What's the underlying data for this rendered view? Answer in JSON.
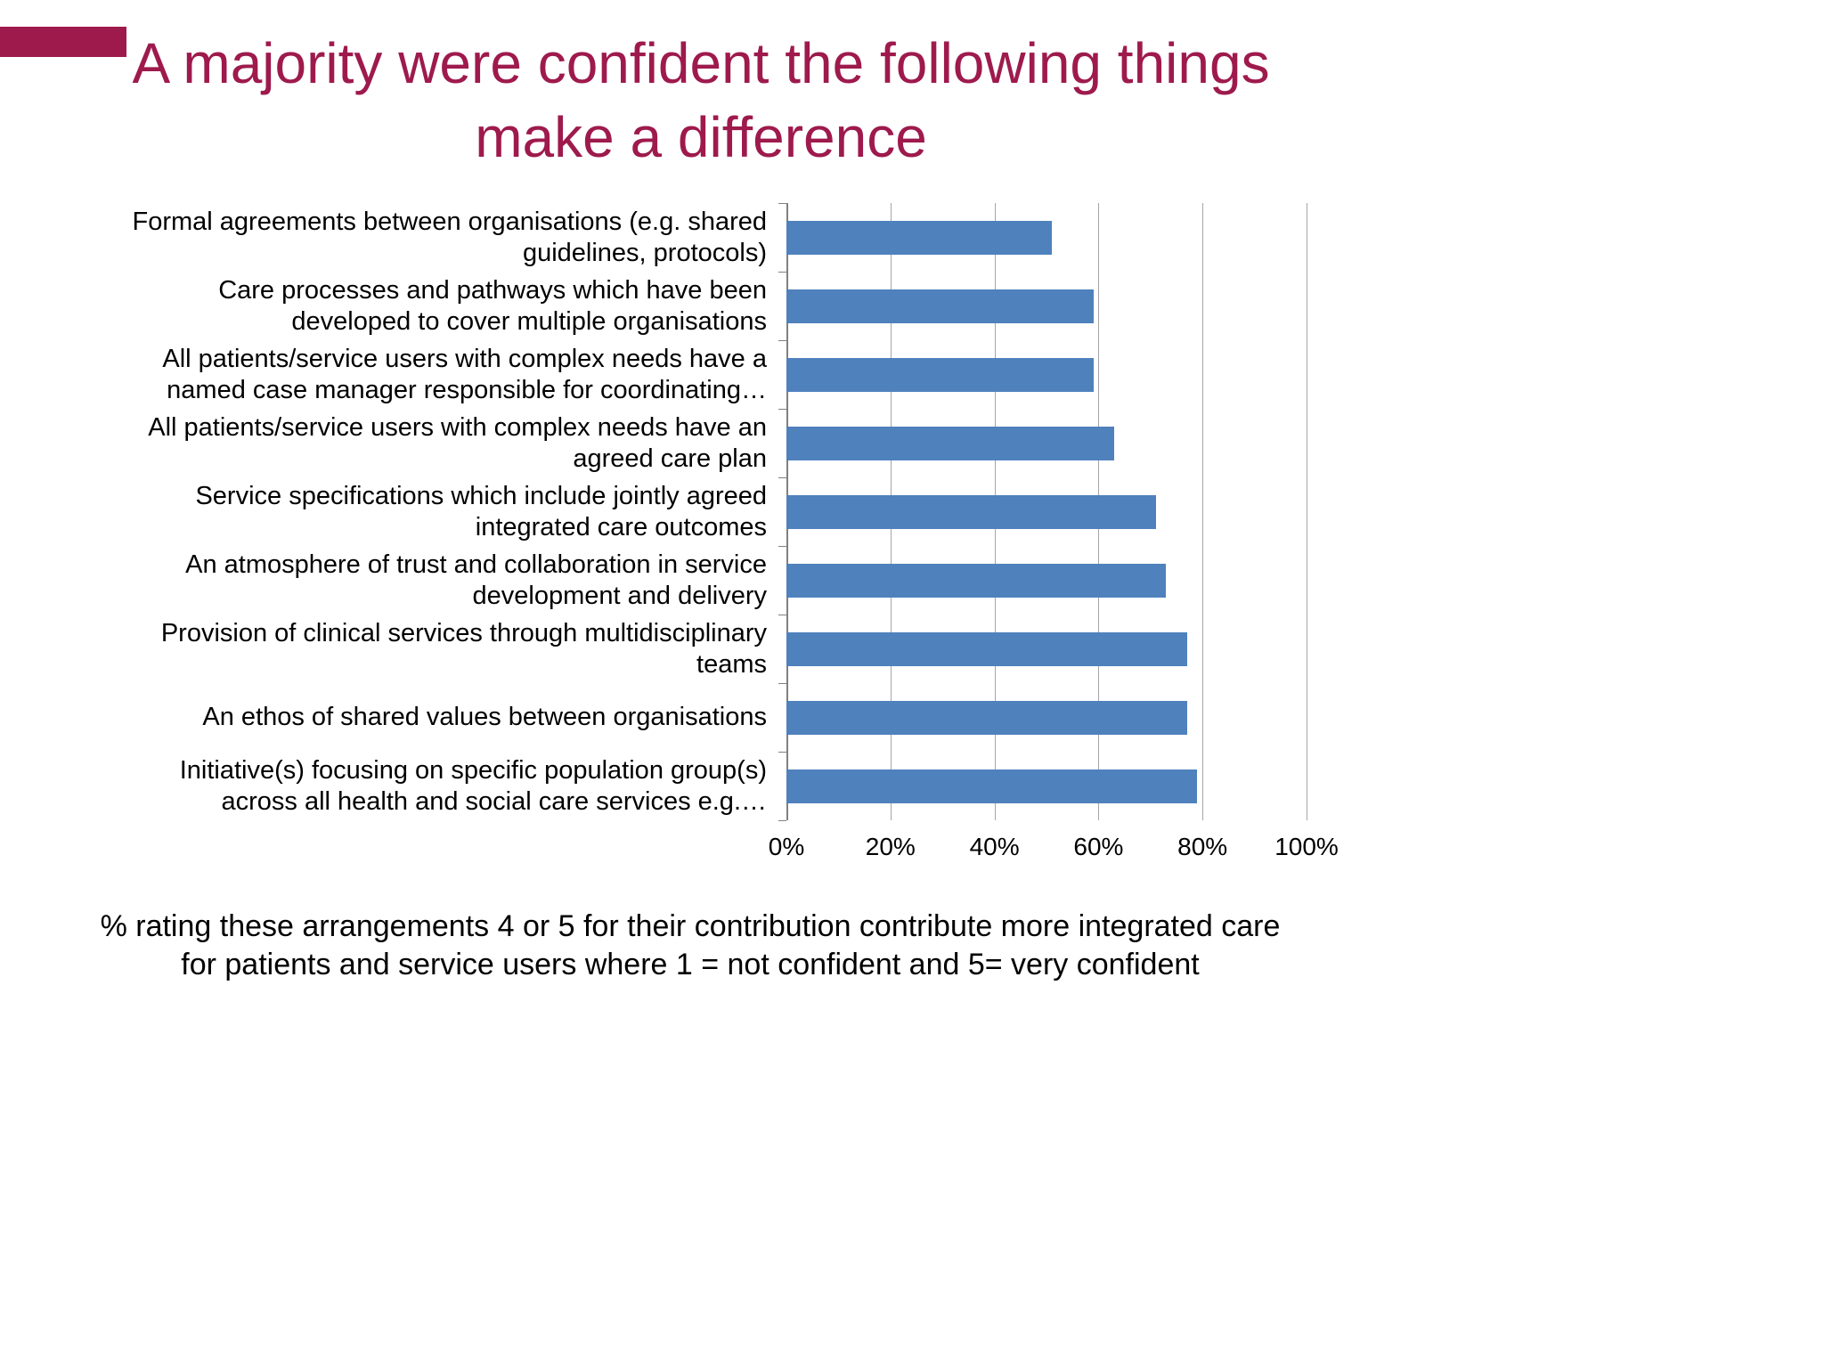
{
  "slide": {
    "title": "A majority were confident the following things make a difference",
    "caption": "% rating these arrangements 4 or 5 for their contribution contribute more integrated care for patients and service users where 1 = not confident and 5= very confident",
    "accent_color": "#9E1A4D"
  },
  "chart_data": {
    "type": "bar",
    "orientation": "horizontal",
    "title": "",
    "xlabel": "",
    "ylabel": "",
    "categories": [
      "Formal agreements between organisations (e.g. shared guidelines, protocols)",
      "Care processes and pathways which have been developed to cover multiple organisations",
      "All patients/service users with complex needs have a named case manager responsible for coordinating…",
      "All patients/service users with complex needs have an agreed care plan",
      "Service specifications which include jointly agreed integrated care outcomes",
      "An atmosphere of trust and collaboration in service development and delivery",
      "Provision of clinical services through multidisciplinary teams",
      "An ethos of shared values between organisations",
      "Initiative(s) focusing on specific population group(s) across all health and social care services e.g.…"
    ],
    "values": [
      51,
      59,
      59,
      63,
      71,
      73,
      77,
      77,
      79
    ],
    "xlim": [
      0,
      100
    ],
    "x_ticks": [
      {
        "label": "0%",
        "value": 0
      },
      {
        "label": "20%",
        "value": 20
      },
      {
        "label": "40%",
        "value": 40
      },
      {
        "label": "60%",
        "value": 60
      },
      {
        "label": "80%",
        "value": 80
      },
      {
        "label": "100%",
        "value": 100
      }
    ],
    "grid": true,
    "legend": false,
    "bar_color": "#4F81BD",
    "gridline_color": "#A6A6A6",
    "axis_color": "#808080"
  }
}
